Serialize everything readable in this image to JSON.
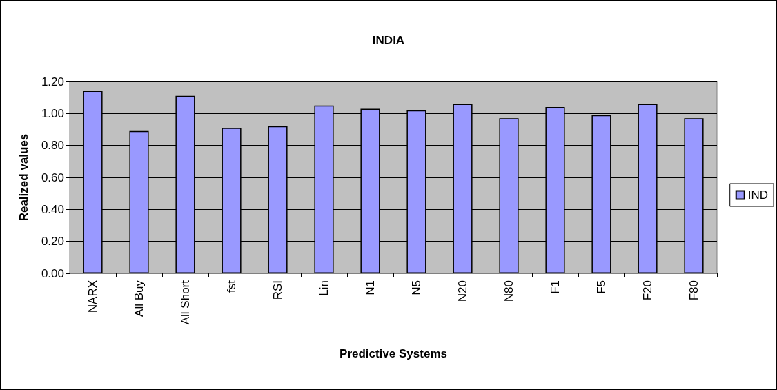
{
  "chart_data": {
    "type": "bar",
    "title": "INDIA",
    "xlabel": "Predictive Systems",
    "ylabel": "Realized values",
    "categories": [
      "NARX",
      "All Buy",
      "All Short",
      "fst",
      "RSI",
      "Lin",
      "N1",
      "N5",
      "N20",
      "N80",
      "F1",
      "F5",
      "F20",
      "F80"
    ],
    "series": [
      {
        "name": "IND",
        "color": "#9999ff",
        "values": [
          1.14,
          0.89,
          1.11,
          0.91,
          0.92,
          1.05,
          1.03,
          1.02,
          1.06,
          0.97,
          1.04,
          0.99,
          1.06,
          0.97
        ]
      }
    ],
    "ylim": [
      0,
      1.2
    ],
    "yticks": [
      {
        "value": 0,
        "label": "0.00"
      },
      {
        "value": 0.2,
        "label": "0.20"
      },
      {
        "value": 0.4,
        "label": "0.40"
      },
      {
        "value": 0.6,
        "label": "0.60"
      },
      {
        "value": 0.8,
        "label": "0.80"
      },
      {
        "value": 1.0,
        "label": "1.00"
      },
      {
        "value": 1.2,
        "label": "1.20"
      }
    ],
    "grid": "y",
    "legend": "right"
  }
}
